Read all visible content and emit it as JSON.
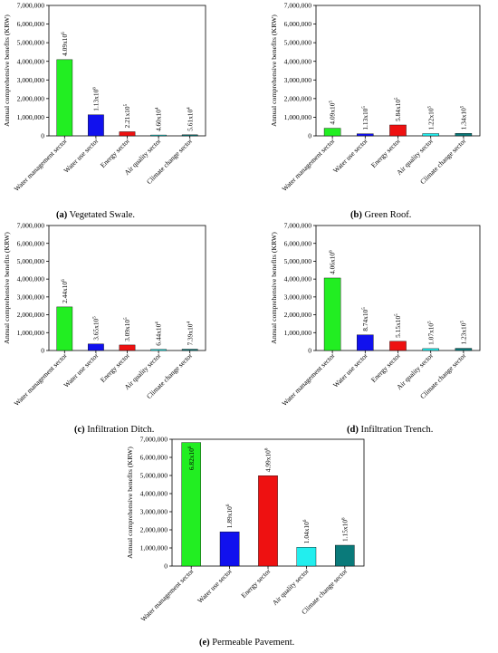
{
  "chart_data": [
    {
      "panel_id": "a",
      "type": "bar",
      "caption_letter": "(a)",
      "caption_text": " Vegetated Swale.",
      "ylabel": "Annual comprehensive benefits (KRW)",
      "ylim": [
        0,
        7000000
      ],
      "yticks": [
        "0",
        "1,000,000",
        "2,000,000",
        "3,000,000",
        "4,000,000",
        "5,000,000",
        "6,000,000",
        "7,000,000"
      ],
      "categories": [
        "Water management sector",
        "Water use sector",
        "Energy sector",
        "Air quality sector",
        "Climate change sector"
      ],
      "values": [
        4090000,
        1130000,
        221000,
        46000,
        56100
      ],
      "data_labels": [
        {
          "mantissa": "4.09x10",
          "exp": "6"
        },
        {
          "mantissa": "1.13x10",
          "exp": "6"
        },
        {
          "mantissa": "2.21x10",
          "exp": "5"
        },
        {
          "mantissa": "4.60x10",
          "exp": "4"
        },
        {
          "mantissa": "5.61x10",
          "exp": "4"
        }
      ],
      "colors": [
        "#22ee22",
        "#1111ee",
        "#ee1111",
        "#22eeee",
        "#0a7a7a"
      ]
    },
    {
      "panel_id": "b",
      "type": "bar",
      "caption_letter": "(b)",
      "caption_text": " Green Roof.",
      "ylabel": "Annual comprehensive benefits (KRW)",
      "ylim": [
        0,
        7000000
      ],
      "yticks": [
        "0",
        "1,000,000",
        "2,000,000",
        "3,000,000",
        "4,000,000",
        "5,000,000",
        "6,000,000",
        "7,000,000"
      ],
      "categories": [
        "Water management sector",
        "Water use sector",
        "Energy sector",
        "Air quality sector",
        "Climate change sector"
      ],
      "values": [
        409000,
        113000,
        584000,
        122000,
        134000
      ],
      "data_labels": [
        {
          "mantissa": "4.09x10",
          "exp": "5"
        },
        {
          "mantissa": "1.13x10",
          "exp": "5"
        },
        {
          "mantissa": "5.84x10",
          "exp": "5"
        },
        {
          "mantissa": "1.22x10",
          "exp": "5"
        },
        {
          "mantissa": "1.34x10",
          "exp": "5"
        }
      ],
      "colors": [
        "#22ee22",
        "#1111ee",
        "#ee1111",
        "#22eeee",
        "#0a7a7a"
      ]
    },
    {
      "panel_id": "c",
      "type": "bar",
      "caption_letter": "(c)",
      "caption_text": " Infiltration Ditch.",
      "ylabel": "Annual comprehensive benefits (KRW)",
      "ylim": [
        0,
        7000000
      ],
      "yticks": [
        "0",
        "1,000,000",
        "2,000,000",
        "3,000,000",
        "4,000,000",
        "5,000,000",
        "6,000,000",
        "7,000,000"
      ],
      "categories": [
        "Water management sector",
        "Water use sector",
        "Energy sector",
        "Air quality sector",
        "Climate change sector"
      ],
      "values": [
        2440000,
        365000,
        309000,
        64400,
        73900
      ],
      "data_labels": [
        {
          "mantissa": "2.44x10",
          "exp": "6"
        },
        {
          "mantissa": "3.65x10",
          "exp": "5"
        },
        {
          "mantissa": "3.09x10",
          "exp": "5"
        },
        {
          "mantissa": "6.44x10",
          "exp": "4"
        },
        {
          "mantissa": "7.39x10",
          "exp": "4"
        }
      ],
      "colors": [
        "#22ee22",
        "#1111ee",
        "#ee1111",
        "#22eeee",
        "#0a7a7a"
      ]
    },
    {
      "panel_id": "d",
      "type": "bar",
      "caption_letter": "(d)",
      "caption_text": " Infiltration Trench.",
      "ylabel": "Annual comprehensive benefits (KRW)",
      "ylim": [
        0,
        7000000
      ],
      "yticks": [
        "0",
        "1,000,000",
        "2,000,000",
        "3,000,000",
        "4,000,000",
        "5,000,000",
        "6,000,000",
        "7,000,000"
      ],
      "categories": [
        "Water management sector",
        "Water use sector",
        "Energy sector",
        "Air quality sector",
        "Climate change sector"
      ],
      "values": [
        4060000,
        874000,
        515000,
        107000,
        123000
      ],
      "data_labels": [
        {
          "mantissa": "4.06x10",
          "exp": "6"
        },
        {
          "mantissa": "8.74x10",
          "exp": "5"
        },
        {
          "mantissa": "5.15x10",
          "exp": "5"
        },
        {
          "mantissa": "1.07x10",
          "exp": "5"
        },
        {
          "mantissa": "1.23x10",
          "exp": "5"
        }
      ],
      "colors": [
        "#22ee22",
        "#1111ee",
        "#ee1111",
        "#22eeee",
        "#0a7a7a"
      ]
    },
    {
      "panel_id": "e",
      "type": "bar",
      "caption_letter": "(e)",
      "caption_text": " Permeable Pavement.",
      "ylabel": "Annual comprehensive benefits (KRW)",
      "ylim": [
        0,
        7000000
      ],
      "yticks": [
        "0",
        "1,000,000",
        "2,000,000",
        "3,000,000",
        "4,000,000",
        "5,000,000",
        "6,000,000",
        "7,000,000"
      ],
      "categories": [
        "Water management sector",
        "Water use sector",
        "Energy sector",
        "Air quality sector",
        "Climate change sector"
      ],
      "values": [
        6820000,
        1890000,
        4990000,
        1040000,
        1150000
      ],
      "data_labels": [
        {
          "mantissa": "6.82x10",
          "exp": "6"
        },
        {
          "mantissa": "1.89x10",
          "exp": "6"
        },
        {
          "mantissa": "4.99x10",
          "exp": "6"
        },
        {
          "mantissa": "1.04x10",
          "exp": "6"
        },
        {
          "mantissa": "1.15x10",
          "exp": "6"
        }
      ],
      "colors": [
        "#22ee22",
        "#1111ee",
        "#ee1111",
        "#22eeee",
        "#0a7a7a"
      ]
    }
  ]
}
